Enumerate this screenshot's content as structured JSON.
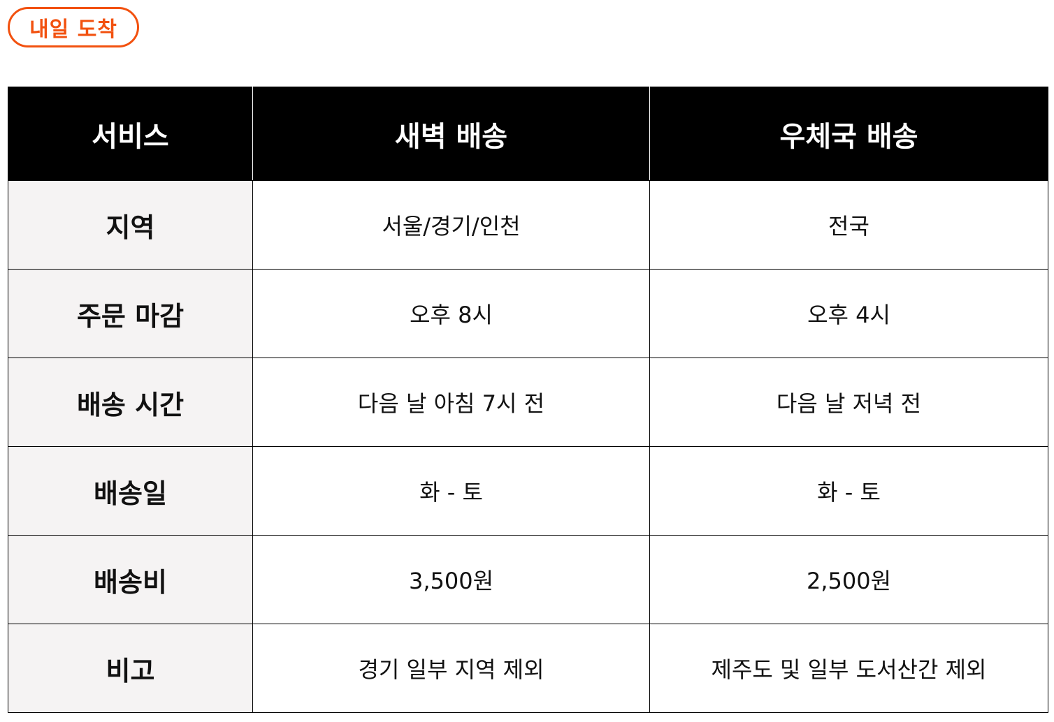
{
  "badge": {
    "label": "내일 도착",
    "color": "#f2510f"
  },
  "table": {
    "headers": [
      "서비스",
      "새벽 배송",
      "우체국 배송"
    ],
    "rows": [
      {
        "label": "지역",
        "dawn": "서울/경기/인천",
        "post": "전국"
      },
      {
        "label": "주문 마감",
        "dawn": "오후 8시",
        "post": "오후 4시"
      },
      {
        "label": "배송 시간",
        "dawn": "다음 날 아침 7시 전",
        "post": "다음 날 저녁 전"
      },
      {
        "label": "배송일",
        "dawn": "화 - 토",
        "post": "화 - 토"
      },
      {
        "label": "배송비",
        "dawn": "3,500원",
        "post": "2,500원"
      },
      {
        "label": "비고",
        "dawn": "경기 일부 지역 제외",
        "post": "제주도 및 일부 도서산간 제외"
      }
    ],
    "colors": {
      "header_bg": "#000000",
      "header_text": "#ffffff",
      "label_bg": "#f5f3f3"
    }
  }
}
